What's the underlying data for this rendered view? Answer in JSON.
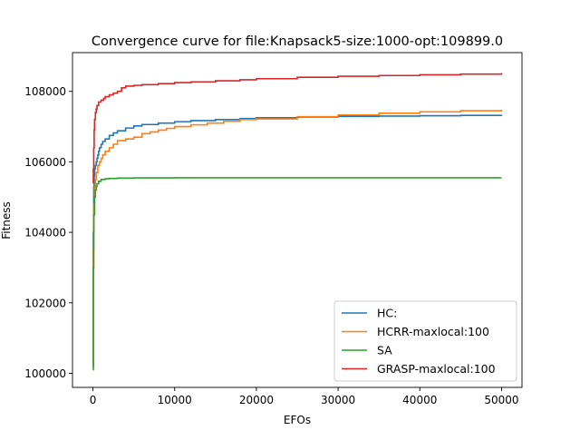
{
  "chart_data": {
    "type": "line",
    "title": "Convergence curve for file:Knapsack5-size:1000-opt:109899.0",
    "xlabel": "EFOs",
    "ylabel": "Fitness",
    "xlim": [
      -2500,
      52500
    ],
    "ylim": [
      99600,
      109100
    ],
    "x_ticks": [
      0,
      10000,
      20000,
      30000,
      40000,
      50000
    ],
    "x_tick_labels": [
      "0",
      "10000",
      "20000",
      "30000",
      "40000",
      "50000"
    ],
    "y_ticks": [
      100000,
      102000,
      104000,
      106000,
      108000
    ],
    "y_tick_labels": [
      "100000",
      "102000",
      "104000",
      "106000",
      "108000"
    ],
    "grid": false,
    "legend_position": "lower right",
    "series": [
      {
        "name": "HC:",
        "color": "#1f77b4",
        "x": [
          0,
          50,
          100,
          150,
          200,
          300,
          400,
          500,
          600,
          700,
          800,
          1000,
          1200,
          1500,
          2000,
          2500,
          3000,
          4000,
          5000,
          6000,
          8000,
          10000,
          12000,
          15000,
          18000,
          20000,
          25000,
          30000,
          35000,
          40000,
          45000,
          50000
        ],
        "y": [
          100200,
          104000,
          105300,
          105600,
          105800,
          105900,
          106000,
          106100,
          106200,
          106300,
          106400,
          106500,
          106580,
          106650,
          106750,
          106820,
          106880,
          106960,
          107020,
          107060,
          107100,
          107140,
          107170,
          107200,
          107230,
          107250,
          107270,
          107290,
          107300,
          107310,
          107320,
          107330
        ]
      },
      {
        "name": "HCRR-maxlocal:100",
        "color": "#ff7f0e",
        "x": [
          0,
          50,
          100,
          200,
          300,
          400,
          600,
          800,
          1000,
          1200,
          1500,
          2000,
          2500,
          3000,
          4000,
          5000,
          6000,
          7000,
          8000,
          9000,
          10000,
          12000,
          14000,
          16000,
          18000,
          20000,
          25000,
          30000,
          35000,
          40000,
          45000,
          50000
        ],
        "y": [
          100200,
          103500,
          104800,
          105300,
          105500,
          105700,
          105900,
          106000,
          106100,
          106200,
          106300,
          106400,
          106500,
          106600,
          106650,
          106700,
          106800,
          106850,
          106900,
          106950,
          107000,
          107050,
          107100,
          107150,
          107200,
          107220,
          107280,
          107330,
          107380,
          107420,
          107450,
          107480
        ]
      },
      {
        "name": "SA",
        "color": "#2ca02c",
        "x": [
          0,
          50,
          100,
          200,
          300,
          400,
          500,
          700,
          1000,
          1500,
          2000,
          3000,
          5000,
          10000,
          20000,
          30000,
          40000,
          50000
        ],
        "y": [
          100100,
          103000,
          104500,
          105000,
          105200,
          105300,
          105380,
          105450,
          105500,
          105520,
          105530,
          105540,
          105545,
          105550,
          105550,
          105550,
          105550,
          105550
        ]
      },
      {
        "name": "GRASP-maxlocal:100",
        "color": "#d62728",
        "x": [
          0,
          50,
          100,
          150,
          200,
          300,
          400,
          500,
          700,
          1000,
          1300,
          1500,
          2000,
          2500,
          3000,
          3500,
          4000,
          5000,
          6000,
          8000,
          10000,
          12000,
          15000,
          18000,
          20000,
          25000,
          30000,
          35000,
          40000,
          45000,
          50000
        ],
        "y": [
          105400,
          105800,
          106400,
          106900,
          107200,
          107400,
          107500,
          107600,
          107700,
          107750,
          107800,
          107850,
          107900,
          107950,
          108000,
          108100,
          108150,
          108170,
          108190,
          108220,
          108250,
          108270,
          108300,
          108330,
          108360,
          108400,
          108430,
          108450,
          108470,
          108490,
          108520
        ]
      }
    ]
  }
}
